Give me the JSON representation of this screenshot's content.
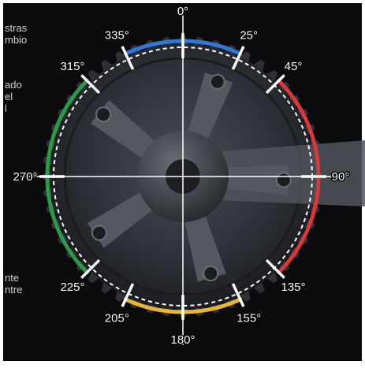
{
  "image": {
    "background": "#ffffff",
    "photo_background": "#0b0b0e",
    "chainring_color": "#3a3d44"
  },
  "angle_labels": [
    {
      "text": "0°",
      "angle": 0
    },
    {
      "text": "25°",
      "angle": 25
    },
    {
      "text": "45°",
      "angle": 45
    },
    {
      "text": "90°",
      "angle": 90
    },
    {
      "text": "135°",
      "angle": 135
    },
    {
      "text": "155°",
      "angle": 155
    },
    {
      "text": "180°",
      "angle": 180
    },
    {
      "text": "205°",
      "angle": 205
    },
    {
      "text": "225°",
      "angle": 225
    },
    {
      "text": "270°",
      "angle": 270
    },
    {
      "text": "315°",
      "angle": 315
    },
    {
      "text": "335°",
      "angle": 335
    }
  ],
  "arcs": [
    {
      "name": "blue-arc",
      "from": 335,
      "to": 25,
      "color": "#2f78d6"
    },
    {
      "name": "red-arc",
      "from": 45,
      "to": 135,
      "color": "#d8383a"
    },
    {
      "name": "yellow-arc",
      "from": 155,
      "to": 205,
      "color": "#e8b630"
    },
    {
      "name": "green-arc",
      "from": 225,
      "to": 315,
      "color": "#2a9a48"
    }
  ],
  "side_text_left": [
    "stras",
    "mbio",
    "",
    "",
    "ado",
    "el",
    "l"
  ],
  "side_text_bottom": [
    "nte",
    "ntre"
  ]
}
